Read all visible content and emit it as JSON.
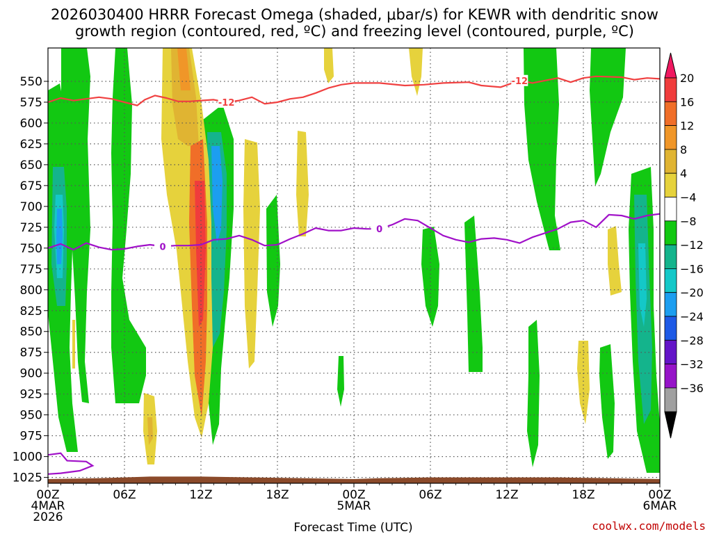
{
  "chart_data": {
    "type": "time-height cross section",
    "title_line1": "2026030400 HRRR Forecast Omega (shaded, μbar/s) for KEWR with dendritic snow",
    "title_line2": "growth region (contoured, red, ºC) and freezing level (contoured, purple, ºC)",
    "xlabel": "Forecast Time (UTC)",
    "credit": "coolwx.com/models",
    "x_hours": [
      0,
      48
    ],
    "x_ticks": [
      {
        "hour": 0,
        "l1": "00Z",
        "l2": "4MAR",
        "l3": "2026"
      },
      {
        "hour": 6,
        "l1": "06Z",
        "l2": "",
        "l3": ""
      },
      {
        "hour": 12,
        "l1": "12Z",
        "l2": "",
        "l3": ""
      },
      {
        "hour": 18,
        "l1": "18Z",
        "l2": "",
        "l3": ""
      },
      {
        "hour": 24,
        "l1": "00Z",
        "l2": "5MAR",
        "l3": ""
      },
      {
        "hour": 30,
        "l1": "06Z",
        "l2": "",
        "l3": ""
      },
      {
        "hour": 36,
        "l1": "12Z",
        "l2": "",
        "l3": ""
      },
      {
        "hour": 42,
        "l1": "18Z",
        "l2": "",
        "l3": ""
      },
      {
        "hour": 48,
        "l1": "00Z",
        "l2": "6MAR",
        "l3": ""
      }
    ],
    "y_levels_hpa": [
      550,
      575,
      600,
      625,
      650,
      675,
      700,
      725,
      750,
      775,
      800,
      825,
      850,
      875,
      900,
      925,
      950,
      975,
      1000,
      1025
    ],
    "y_range_hpa": [
      510,
      1032
    ],
    "colorbar": {
      "labels": [
        "20",
        "16",
        "12",
        "8",
        "4",
        "−4",
        "−8",
        "−12",
        "−16",
        "−20",
        "−24",
        "−28",
        "−32",
        "−36"
      ],
      "colors": [
        "#f01860",
        "#f03c3c",
        "#f06e28",
        "#f09628",
        "#e0b432",
        "#e6d23c",
        "#ffffff",
        "#12c812",
        "#14b48c",
        "#14c8c8",
        "#1c9ef0",
        "#1e5ae6",
        "#6414c8",
        "#9614c8",
        "#a0a0a0",
        "#000000"
      ]
    },
    "dgz_top_contour": {
      "label": "-12",
      "color": "#f04040",
      "points": [
        [
          0,
          575
        ],
        [
          1,
          570
        ],
        [
          2,
          573
        ],
        [
          3,
          571
        ],
        [
          4,
          569
        ],
        [
          5,
          571
        ],
        [
          6,
          575
        ],
        [
          7,
          579
        ],
        [
          7.6,
          572
        ],
        [
          8.4,
          567
        ],
        [
          9.3,
          570
        ],
        [
          10.2,
          574
        ],
        [
          11.1,
          574
        ],
        [
          12,
          573
        ],
        [
          13,
          572
        ],
        [
          14,
          575
        ],
        [
          15,
          573
        ],
        [
          16,
          569
        ],
        [
          17,
          577
        ],
        [
          18,
          575
        ],
        [
          19,
          571
        ],
        [
          20,
          569
        ],
        [
          21,
          564
        ],
        [
          22,
          558
        ],
        [
          23,
          554
        ],
        [
          24,
          552
        ],
        [
          26,
          552
        ],
        [
          28,
          555
        ],
        [
          29.5,
          554
        ],
        [
          31,
          552
        ],
        [
          33,
          551
        ],
        [
          34,
          555
        ],
        [
          35.5,
          557
        ],
        [
          37,
          549
        ],
        [
          38,
          552
        ],
        [
          39,
          549
        ],
        [
          40,
          546
        ],
        [
          41,
          551
        ],
        [
          42,
          546
        ],
        [
          43,
          544
        ],
        [
          45,
          545
        ],
        [
          46,
          548
        ],
        [
          47,
          546
        ],
        [
          48,
          547
        ]
      ]
    },
    "freezing_level_contour": {
      "label": "0",
      "color": "#a010c8",
      "points": [
        [
          0,
          750
        ],
        [
          1,
          745
        ],
        [
          2,
          752
        ],
        [
          3,
          744
        ],
        [
          4,
          749
        ],
        [
          5,
          752
        ],
        [
          6,
          751
        ],
        [
          7,
          748
        ],
        [
          8,
          746
        ],
        [
          9,
          748
        ],
        [
          10,
          747
        ],
        [
          11,
          747
        ],
        [
          12,
          746
        ],
        [
          13,
          740
        ],
        [
          14,
          739
        ],
        [
          15,
          735
        ],
        [
          16,
          740
        ],
        [
          17,
          747
        ],
        [
          18,
          746
        ],
        [
          19,
          739
        ],
        [
          20,
          733
        ],
        [
          21,
          726
        ],
        [
          22,
          729
        ],
        [
          23,
          729
        ],
        [
          24,
          726
        ],
        [
          25,
          727
        ],
        [
          26,
          727
        ],
        [
          27,
          722
        ],
        [
          28,
          715
        ],
        [
          29,
          717
        ],
        [
          30,
          726
        ],
        [
          31,
          735
        ],
        [
          32,
          740
        ],
        [
          33,
          743
        ],
        [
          34,
          739
        ],
        [
          35,
          738
        ],
        [
          36,
          740
        ],
        [
          37,
          744
        ],
        [
          38,
          737
        ],
        [
          39,
          732
        ],
        [
          40,
          727
        ],
        [
          41,
          719
        ],
        [
          42,
          717
        ],
        [
          43,
          725
        ],
        [
          44,
          710
        ],
        [
          45,
          711
        ],
        [
          46,
          715
        ],
        [
          47,
          711
        ],
        [
          48,
          709
        ]
      ]
    },
    "freezing_level_surface_contour": {
      "color": "#a010c8",
      "points": [
        [
          0,
          998
        ],
        [
          1,
          996
        ],
        [
          1.5,
          1005
        ],
        [
          3,
          1006
        ],
        [
          3.5,
          1011
        ],
        [
          2.5,
          1017
        ],
        [
          1,
          1020
        ],
        [
          0,
          1021
        ]
      ]
    },
    "terrain_color": "#8b4a2a"
  }
}
